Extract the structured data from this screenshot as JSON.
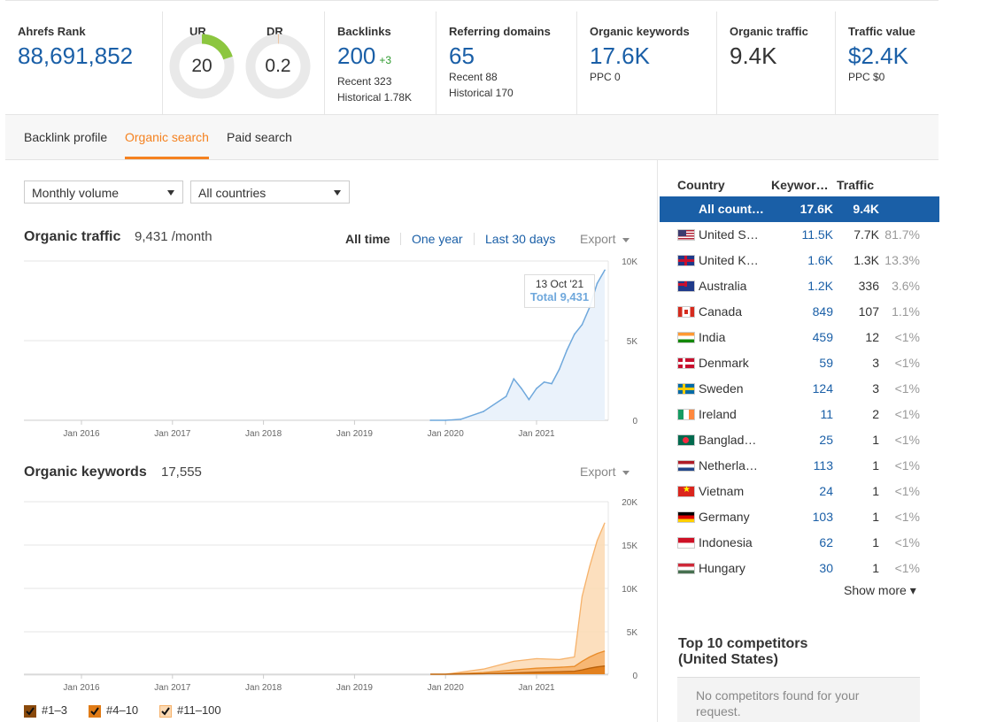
{
  "metrics": {
    "ahrefs_rank": {
      "label": "Ahrefs Rank",
      "value": "88,691,852"
    },
    "ur": {
      "label": "UR",
      "value": "20",
      "level": 20
    },
    "dr": {
      "label": "DR",
      "value": "0.2",
      "level": 0.2
    },
    "backlinks": {
      "label": "Backlinks",
      "value": "200",
      "delta": "+3",
      "recent": "Recent 323",
      "historical": "Historical 1.78K"
    },
    "referring_domains": {
      "label": "Referring domains",
      "value": "65",
      "recent": "Recent 88",
      "historical": "Historical 170"
    },
    "organic_keywords": {
      "label": "Organic keywords",
      "value": "17.6K",
      "ppc": "PPC 0"
    },
    "organic_traffic": {
      "label": "Organic traffic",
      "value": "9.4K"
    },
    "traffic_value": {
      "label": "Traffic value",
      "value": "$2.4K",
      "ppc": "PPC $0"
    }
  },
  "tabs": [
    "Backlink profile",
    "Organic search",
    "Paid search"
  ],
  "filters": {
    "volume": "Monthly volume",
    "country": "All countries"
  },
  "traffic_section": {
    "title": "Organic traffic",
    "value": "9,431 /month",
    "ranges": [
      "All time",
      "One year",
      "Last 30 days"
    ],
    "export": "Export",
    "tooltip_date": "13 Oct '21",
    "tooltip_total": "Total 9,431"
  },
  "keywords_section": {
    "title": "Organic keywords",
    "value": "17,555",
    "export": "Export"
  },
  "legend": [
    "#1–3",
    "#4–10",
    "#11–100"
  ],
  "colors": {
    "accent": "#f58220",
    "link": "#1a5fa7",
    "traffic_line": "#6fa8dc",
    "kw_light": "#fbd9b3",
    "kw_mid": "#f6b26b",
    "kw_dark": "#e07b16"
  },
  "chart_data": [
    {
      "type": "area",
      "title": "Organic traffic",
      "x": [
        "2019-11",
        "2020-01",
        "2020-03",
        "2020-06",
        "2020-09",
        "2020-10",
        "2020-11",
        "2020-12",
        "2021-01",
        "2021-02",
        "2021-03",
        "2021-04",
        "2021-05",
        "2021-06",
        "2021-07",
        "2021-08",
        "2021-09",
        "2021-10"
      ],
      "y": [
        0,
        0,
        60,
        550,
        1500,
        2600,
        2000,
        1300,
        2000,
        2400,
        2300,
        3200,
        4400,
        5400,
        6000,
        7100,
        8600,
        9431
      ],
      "x_ticks": [
        "Jan 2016",
        "Jan 2017",
        "Jan 2018",
        "Jan 2019",
        "Jan 2020",
        "Jan 2021"
      ],
      "y_ticks": [
        "10K",
        "5K",
        "0"
      ],
      "ylim": [
        0,
        10000
      ]
    },
    {
      "type": "area",
      "title": "Organic keywords",
      "x": [
        "2019-11",
        "2020-01",
        "2020-06",
        "2020-10",
        "2021-01",
        "2021-04",
        "2021-06",
        "2021-07",
        "2021-08",
        "2021-09",
        "2021-10"
      ],
      "series": [
        {
          "name": "#11–100",
          "values": [
            0,
            0,
            600,
            1500,
            1800,
            1700,
            2000,
            9000,
            12500,
            15500,
            17555
          ]
        },
        {
          "name": "#4–10",
          "values": [
            0,
            0,
            200,
            500,
            700,
            800,
            900,
            1500,
            2000,
            2400,
            2700
          ]
        },
        {
          "name": "#1–3",
          "values": [
            0,
            0,
            50,
            150,
            250,
            300,
            350,
            500,
            700,
            850,
            950
          ]
        }
      ],
      "x_ticks": [
        "Jan 2016",
        "Jan 2017",
        "Jan 2018",
        "Jan 2019",
        "Jan 2020",
        "Jan 2021"
      ],
      "y_ticks": [
        "20K",
        "15K",
        "10K",
        "5K",
        "0"
      ],
      "ylim": [
        0,
        20000
      ]
    }
  ],
  "countries_table": {
    "headers": [
      "Country",
      "Keywor…",
      "Traffic"
    ],
    "rows": [
      {
        "country": "All count…",
        "keywords": "17.6K",
        "traffic": "9.4K",
        "share": ""
      },
      {
        "country": "United S…",
        "keywords": "11.5K",
        "traffic": "7.7K",
        "share": "81.7%",
        "flag": "us"
      },
      {
        "country": "United K…",
        "keywords": "1.6K",
        "traffic": "1.3K",
        "share": "13.3%",
        "flag": "gb"
      },
      {
        "country": "Australia",
        "keywords": "1.2K",
        "traffic": "336",
        "share": "3.6%",
        "flag": "au"
      },
      {
        "country": "Canada",
        "keywords": "849",
        "traffic": "107",
        "share": "1.1%",
        "flag": "ca"
      },
      {
        "country": "India",
        "keywords": "459",
        "traffic": "12",
        "share": "<1%",
        "flag": "in"
      },
      {
        "country": "Denmark",
        "keywords": "59",
        "traffic": "3",
        "share": "<1%",
        "flag": "dk"
      },
      {
        "country": "Sweden",
        "keywords": "124",
        "traffic": "3",
        "share": "<1%",
        "flag": "se"
      },
      {
        "country": "Ireland",
        "keywords": "11",
        "traffic": "2",
        "share": "<1%",
        "flag": "ie"
      },
      {
        "country": "Banglad…",
        "keywords": "25",
        "traffic": "1",
        "share": "<1%",
        "flag": "bd"
      },
      {
        "country": "Netherla…",
        "keywords": "113",
        "traffic": "1",
        "share": "<1%",
        "flag": "nl"
      },
      {
        "country": "Vietnam",
        "keywords": "24",
        "traffic": "1",
        "share": "<1%",
        "flag": "vn"
      },
      {
        "country": "Germany",
        "keywords": "103",
        "traffic": "1",
        "share": "<1%",
        "flag": "de"
      },
      {
        "country": "Indonesia",
        "keywords": "62",
        "traffic": "1",
        "share": "<1%",
        "flag": "id"
      },
      {
        "country": "Hungary",
        "keywords": "30",
        "traffic": "1",
        "share": "<1%",
        "flag": "hu"
      }
    ],
    "show_more": "Show more"
  },
  "competitors": {
    "title_line1": "Top 10 competitors",
    "title_line2": "(United States)",
    "empty_line1": "No competitors found for your",
    "empty_line2": "request."
  }
}
